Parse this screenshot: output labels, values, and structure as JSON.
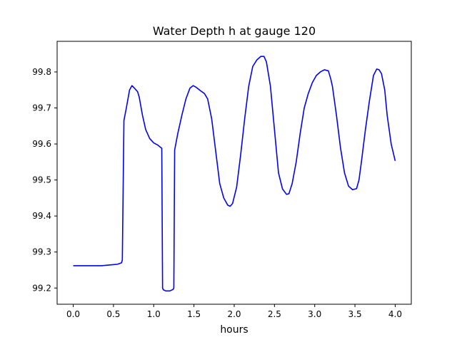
{
  "chart_data": {
    "type": "line",
    "title": "Water Depth h at gauge 120",
    "xlabel": "hours",
    "ylabel": "",
    "xlim": [
      -0.2,
      4.2
    ],
    "ylim": [
      99.155,
      99.885
    ],
    "xticks": [
      0.0,
      0.5,
      1.0,
      1.5,
      2.0,
      2.5,
      3.0,
      3.5,
      4.0
    ],
    "xtick_labels": [
      "0.0",
      "0.5",
      "1.0",
      "1.5",
      "2.0",
      "2.5",
      "3.0",
      "3.5",
      "4.0"
    ],
    "yticks": [
      99.2,
      99.3,
      99.4,
      99.5,
      99.6,
      99.7,
      99.8
    ],
    "ytick_labels": [
      "99.2",
      "99.3",
      "99.4",
      "99.5",
      "99.6",
      "99.7",
      "99.8"
    ],
    "grid": false,
    "legend": "none",
    "series": [
      {
        "color": "#0000ff",
        "x": [
          0.0,
          0.2,
          0.35,
          0.45,
          0.55,
          0.6,
          0.61,
          0.63,
          0.66,
          0.7,
          0.73,
          0.76,
          0.8,
          0.82,
          0.86,
          0.9,
          0.95,
          1.0,
          1.05,
          1.1,
          1.11,
          1.12,
          1.15,
          1.2,
          1.24,
          1.25,
          1.26,
          1.3,
          1.35,
          1.4,
          1.45,
          1.49,
          1.53,
          1.58,
          1.63,
          1.67,
          1.72,
          1.77,
          1.82,
          1.87,
          1.92,
          1.95,
          1.98,
          2.03,
          2.08,
          2.13,
          2.18,
          2.23,
          2.28,
          2.33,
          2.37,
          2.4,
          2.45,
          2.5,
          2.55,
          2.6,
          2.65,
          2.68,
          2.72,
          2.77,
          2.82,
          2.87,
          2.92,
          2.97,
          3.02,
          3.07,
          3.12,
          3.17,
          3.2,
          3.22,
          3.27,
          3.32,
          3.37,
          3.42,
          3.47,
          3.52,
          3.55,
          3.58,
          3.63,
          3.68,
          3.73,
          3.77,
          3.8,
          3.83,
          3.87,
          3.9,
          3.95,
          4.0
        ],
        "y": [
          99.262,
          99.262,
          99.262,
          99.264,
          99.266,
          99.27,
          99.278,
          99.665,
          99.7,
          99.75,
          99.762,
          99.755,
          99.745,
          99.73,
          99.68,
          99.64,
          99.615,
          99.603,
          99.597,
          99.588,
          99.2,
          99.195,
          99.192,
          99.192,
          99.196,
          99.2,
          99.583,
          99.63,
          99.68,
          99.725,
          99.755,
          99.762,
          99.757,
          99.748,
          99.74,
          99.725,
          99.67,
          99.58,
          99.49,
          99.45,
          99.43,
          99.427,
          99.435,
          99.48,
          99.57,
          99.67,
          99.76,
          99.815,
          99.833,
          99.843,
          99.843,
          99.828,
          99.76,
          99.64,
          99.52,
          99.475,
          99.46,
          99.462,
          99.49,
          99.55,
          99.63,
          99.7,
          99.74,
          99.77,
          99.79,
          99.8,
          99.806,
          99.803,
          99.78,
          99.76,
          99.68,
          99.59,
          99.52,
          99.483,
          99.473,
          99.476,
          99.5,
          99.55,
          99.64,
          99.72,
          99.79,
          99.808,
          99.806,
          99.795,
          99.75,
          99.68,
          99.6,
          99.553
        ]
      }
    ]
  }
}
